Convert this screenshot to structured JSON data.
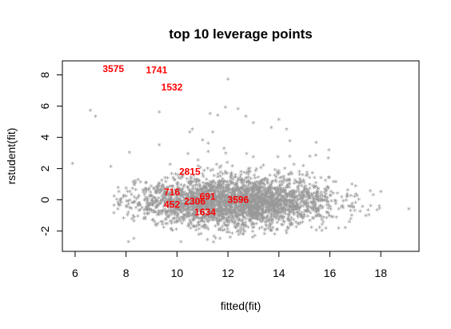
{
  "chart_data": {
    "type": "scatter",
    "title": "top 10 leverage points",
    "xlabel": "fitted(fit)",
    "ylabel": "rstudent(fit)",
    "xlim": [
      5.5,
      19.5
    ],
    "ylim": [
      -3.3,
      8.9
    ],
    "xticks": [
      6,
      8,
      10,
      12,
      14,
      16,
      18
    ],
    "yticks": [
      -2,
      0,
      2,
      4,
      6,
      8
    ],
    "marker": "*",
    "point_color": "#999999",
    "label_color": "#ff0000",
    "grid": false,
    "cloud": {
      "n_points": 3000,
      "x_center": 12.3,
      "x_spread": 1.9,
      "y_center": -0.2,
      "y_spread": 0.85,
      "x_range": [
        7.5,
        18.2
      ]
    },
    "outliers": [
      {
        "x": 5.9,
        "y": 2.3
      },
      {
        "x": 6.6,
        "y": 5.7
      },
      {
        "x": 6.8,
        "y": 5.3
      },
      {
        "x": 7.4,
        "y": 2.1
      },
      {
        "x": 9.3,
        "y": 5.6
      },
      {
        "x": 9.3,
        "y": 3.5
      },
      {
        "x": 10.5,
        "y": 4.3
      },
      {
        "x": 10.6,
        "y": 4.5
      },
      {
        "x": 11.0,
        "y": 3.8
      },
      {
        "x": 11.3,
        "y": 5.5
      },
      {
        "x": 11.4,
        "y": 4.3
      },
      {
        "x": 11.6,
        "y": 5.4
      },
      {
        "x": 11.9,
        "y": 5.9
      },
      {
        "x": 12.0,
        "y": 7.7
      },
      {
        "x": 12.4,
        "y": 5.8
      },
      {
        "x": 12.7,
        "y": 5.3
      },
      {
        "x": 13.0,
        "y": 4.9
      },
      {
        "x": 13.7,
        "y": 4.6
      },
      {
        "x": 14.0,
        "y": 5.1
      },
      {
        "x": 14.3,
        "y": 4.5
      },
      {
        "x": 17.7,
        "y": 0.3
      },
      {
        "x": 18.0,
        "y": 0.5
      },
      {
        "x": 19.1,
        "y": -0.6
      },
      {
        "x": 8.1,
        "y": -2.7
      },
      {
        "x": 8.3,
        "y": -2.5
      }
    ],
    "leverage_points": [
      {
        "label": "3575",
        "x": 7.5,
        "y": 8.4
      },
      {
        "label": "1741",
        "x": 9.2,
        "y": 8.3
      },
      {
        "label": "1532",
        "x": 9.8,
        "y": 7.2
      },
      {
        "label": "2815",
        "x": 10.5,
        "y": 1.8
      },
      {
        "label": "716",
        "x": 9.8,
        "y": 0.5
      },
      {
        "label": "691",
        "x": 11.2,
        "y": 0.2
      },
      {
        "label": "2306",
        "x": 10.7,
        "y": -0.1
      },
      {
        "label": "452",
        "x": 9.8,
        "y": -0.3
      },
      {
        "label": "1634",
        "x": 11.1,
        "y": -0.8
      },
      {
        "label": "3596",
        "x": 12.4,
        "y": 0.0
      }
    ]
  }
}
